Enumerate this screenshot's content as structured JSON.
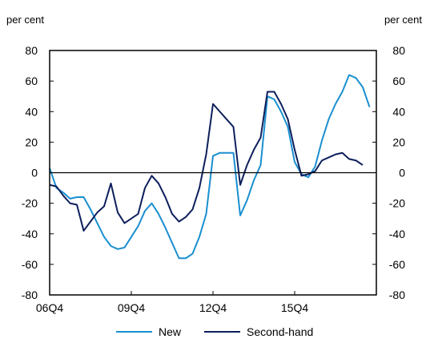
{
  "colors": {
    "new": "#1a8fd0",
    "second_hand": "#0d1f5c",
    "axis": "#000000"
  },
  "chart_data": {
    "type": "line",
    "left_unit": "per cent",
    "right_unit": "per cent",
    "ylim": [
      -80,
      80
    ],
    "yticks": [
      80,
      60,
      40,
      20,
      0,
      -20,
      -40,
      -60,
      -80
    ],
    "x_tick_labels": [
      {
        "quarter": "06Q4",
        "label": "06Q4"
      },
      {
        "quarter": "09Q4",
        "label": "09Q4"
      },
      {
        "quarter": "12Q4",
        "label": "12Q4"
      },
      {
        "quarter": "15Q4",
        "label": "15Q4"
      }
    ],
    "x": [
      "06Q4",
      "07Q1",
      "07Q2",
      "07Q3",
      "07Q4",
      "08Q1",
      "08Q2",
      "08Q3",
      "08Q4",
      "09Q1",
      "09Q2",
      "09Q3",
      "09Q4",
      "10Q1",
      "10Q2",
      "10Q3",
      "10Q4",
      "11Q1",
      "11Q2",
      "11Q3",
      "11Q4",
      "12Q1",
      "12Q2",
      "12Q3",
      "12Q4",
      "13Q1",
      "13Q2",
      "13Q3",
      "13Q4",
      "14Q1",
      "14Q2",
      "14Q3",
      "14Q4",
      "15Q1",
      "15Q2",
      "15Q3",
      "15Q4",
      "16Q1",
      "16Q2",
      "16Q3",
      "16Q4",
      "17Q1",
      "17Q2",
      "17Q3",
      "17Q4",
      "18Q1",
      "18Q2",
      "18Q3",
      "18Q4"
    ],
    "series": [
      {
        "name": "New",
        "color_key": "new",
        "values": [
          3,
          -10,
          -13,
          -17,
          -16,
          -16,
          -24,
          -33,
          -42,
          -48,
          -50,
          -49,
          -42,
          -35,
          -25,
          -20,
          -27,
          -36,
          -46,
          -56,
          -56,
          -53,
          -42,
          -27,
          11,
          13,
          13,
          13,
          -28,
          -18,
          -5,
          5,
          50,
          48,
          40,
          30,
          7,
          -1,
          -3,
          4,
          21,
          35,
          45,
          53,
          64,
          62,
          56,
          43,
          null
        ]
      },
      {
        "name": "Second-hand",
        "color_key": "second_hand",
        "values": [
          -8,
          -9,
          -15,
          -20,
          -21,
          -38,
          -32,
          -26,
          -22,
          -7,
          -26,
          -33,
          -30,
          -27,
          -10,
          -2,
          -7,
          -16,
          -27,
          -32,
          -29,
          -24,
          -10,
          12,
          45,
          40,
          35,
          30,
          -8,
          5,
          15,
          23,
          53,
          53,
          45,
          35,
          15,
          -2,
          -1,
          1,
          8,
          10,
          12,
          13,
          9,
          8,
          5,
          null,
          null
        ]
      }
    ]
  }
}
